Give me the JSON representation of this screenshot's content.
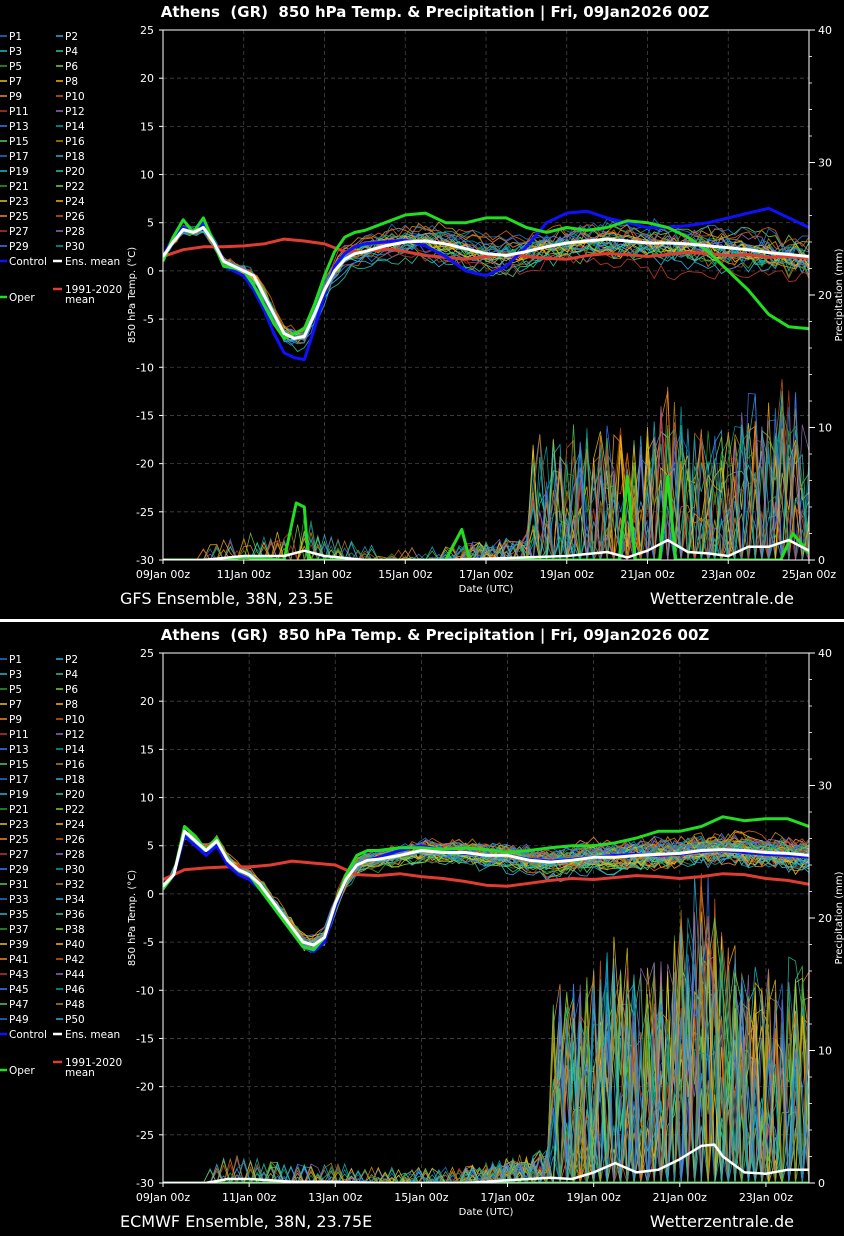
{
  "footer_site": "Wetterzentrale.de",
  "colors": {
    "background": "#000000",
    "frame": "#ffffff",
    "grid": "#444444",
    "mean": "#ffffff",
    "control": "#1010ff",
    "oper": "#22dd22",
    "climatology": "#e03c31",
    "divider": "#ffffff"
  },
  "member_palette": [
    "#1f77d4",
    "#2ab0e0",
    "#17becf",
    "#26c6a0",
    "#2ca02c",
    "#7fd13b",
    "#e8c41a",
    "#ffb000",
    "#f08a24",
    "#d95f0e",
    "#c0392b",
    "#9467bd",
    "#3a78ff",
    "#00a3a3",
    "#55cc55",
    "#b8860b"
  ],
  "chart_data": [
    {
      "type": "line",
      "title": "Athens  (GR)  850 hPa Temp. & Precipitation | Fri, 09Jan2026 00Z",
      "subtitle": "GFS Ensemble, 38N, 23.5E",
      "xlabel": "Date (UTC)",
      "ylabel": "850 hPa Temp. (°C)",
      "y2label": "Precipitation (mm)",
      "ylim": [
        -30,
        25
      ],
      "y2lim": [
        0,
        40
      ],
      "yticks": [
        "25",
        "20",
        "15",
        "10",
        "5",
        "0",
        "-5",
        "-10",
        "-15",
        "-20",
        "-25",
        "-30"
      ],
      "y2ticks": [
        "40",
        "30",
        "20",
        "10",
        "0"
      ],
      "xlim": [
        0,
        16
      ],
      "xticks": [
        {
          "pos": 0,
          "label": "09Jan 00z"
        },
        {
          "pos": 2,
          "label": "11Jan 00z"
        },
        {
          "pos": 4,
          "label": "13Jan 00z"
        },
        {
          "pos": 6,
          "label": "15Jan 00z"
        },
        {
          "pos": 8,
          "label": "17Jan 00z"
        },
        {
          "pos": 10,
          "label": "19Jan 00z"
        },
        {
          "pos": 12,
          "label": "21Jan 00z"
        },
        {
          "pos": 14,
          "label": "23Jan 00z"
        },
        {
          "pos": 16,
          "label": "25Jan 00z"
        }
      ],
      "grid": true,
      "members": [
        "P1",
        "P2",
        "P3",
        "P4",
        "P5",
        "P6",
        "P7",
        "P8",
        "P9",
        "P10",
        "P11",
        "P12",
        "P13",
        "P14",
        "P15",
        "P16",
        "P17",
        "P18",
        "P19",
        "P20",
        "P21",
        "P22",
        "P23",
        "P24",
        "P25",
        "P26",
        "P27",
        "P28",
        "P29",
        "P30"
      ],
      "legend_extra": {
        "control": "Control",
        "mean": "Ens. mean",
        "oper": "Oper",
        "clim": "1991-2020",
        "clim2": "mean"
      },
      "series": [
        {
          "name": "Ens. mean",
          "x": [
            0,
            0.25,
            0.5,
            0.75,
            1,
            1.25,
            1.5,
            1.75,
            2,
            2.25,
            2.5,
            2.75,
            3,
            3.25,
            3.5,
            3.75,
            4,
            4.25,
            4.5,
            4.75,
            5,
            5.5,
            6,
            6.5,
            7,
            7.5,
            8,
            8.5,
            9,
            9.5,
            10,
            10.5,
            11,
            11.5,
            12,
            12.5,
            13,
            13.5,
            14,
            14.5,
            15,
            15.5,
            16
          ],
          "y": [
            1.5,
            3,
            4.3,
            4,
            4.5,
            3,
            1,
            0.5,
            0,
            -0.5,
            -2.5,
            -4.5,
            -6.5,
            -7,
            -6.8,
            -4.5,
            -2,
            0,
            1.2,
            1.8,
            2,
            2.6,
            3,
            3.1,
            2.8,
            2.3,
            1.8,
            1.6,
            2,
            2.5,
            2.9,
            3.1,
            3.3,
            3.1,
            2.9,
            2.9,
            2.8,
            2.6,
            2.4,
            2.2,
            1.9,
            1.7,
            1.5
          ]
        },
        {
          "name": "Control",
          "x": [
            0,
            0.25,
            0.5,
            0.75,
            1,
            1.25,
            1.5,
            1.75,
            2,
            2.25,
            2.5,
            2.75,
            3,
            3.25,
            3.5,
            3.75,
            4,
            4.25,
            4.5,
            4.75,
            5,
            5.5,
            6,
            6.5,
            7,
            7.5,
            8,
            8.5,
            9,
            9.5,
            10,
            10.5,
            11,
            11.5,
            12,
            12.5,
            13,
            13.5,
            14,
            14.5,
            15,
            15.5,
            16
          ],
          "y": [
            1.5,
            3.5,
            4.5,
            4,
            5,
            3,
            0.5,
            0,
            -0.5,
            -2,
            -4,
            -6.5,
            -8.5,
            -9,
            -9.2,
            -6,
            -2.5,
            0.5,
            1.8,
            2.5,
            2.8,
            3,
            3.2,
            2.6,
            1.5,
            0,
            -0.5,
            0.5,
            2.5,
            5,
            6,
            6.2,
            5.5,
            5,
            4.5,
            4.5,
            4.7,
            5,
            5.5,
            6,
            6.5,
            5.5,
            4.5
          ]
        },
        {
          "name": "Oper",
          "x": [
            0,
            0.25,
            0.5,
            0.75,
            1,
            1.25,
            1.5,
            1.75,
            2,
            2.25,
            2.5,
            2.75,
            3,
            3.25,
            3.5,
            3.75,
            4,
            4.25,
            4.5,
            4.75,
            5,
            5.5,
            6,
            6.5,
            7,
            7.5,
            8,
            8.5,
            9,
            9.5,
            10,
            10.5,
            11,
            11.5,
            12,
            12.5,
            13,
            13.5,
            14,
            14.5,
            15,
            15.5,
            16
          ],
          "y": [
            1,
            3.5,
            5.3,
            4,
            5.5,
            3,
            0.5,
            0.3,
            0,
            -1.5,
            -3.5,
            -5.5,
            -7,
            -6.5,
            -6,
            -3.5,
            -0.5,
            2,
            3.5,
            4,
            4.2,
            5,
            5.8,
            6,
            5,
            5,
            5.5,
            5.5,
            4.5,
            4,
            4.5,
            4.2,
            4.5,
            5.2,
            5,
            4.5,
            3.5,
            2,
            0,
            -2,
            -4.5,
            -5.8,
            -6
          ]
        },
        {
          "name": "1991-2020 mean",
          "x": [
            0,
            0.5,
            1,
            1.5,
            2,
            2.5,
            3,
            3.5,
            4,
            4.5,
            5,
            5.5,
            6,
            6.5,
            7,
            7.5,
            8,
            8.5,
            9,
            9.5,
            10,
            10.5,
            11,
            11.5,
            12,
            12.5,
            13,
            13.5,
            14,
            14.5,
            15,
            15.5,
            16
          ],
          "y": [
            1.5,
            2.2,
            2.5,
            2.5,
            2.6,
            2.8,
            3.3,
            3.1,
            2.8,
            2,
            2,
            2.3,
            2,
            1.6,
            1.4,
            1.2,
            1.5,
            1.7,
            1.5,
            1.3,
            1.2,
            1.6,
            1.8,
            1.7,
            1.5,
            1.7,
            1.9,
            1.8,
            1.6,
            1.7,
            1.4,
            1.5,
            1.3
          ]
        }
      ],
      "precip": {
        "mean": {
          "x": [
            0,
            1,
            2,
            3,
            3.5,
            4,
            5,
            6,
            7,
            8,
            9,
            10,
            11,
            11.5,
            12,
            12.5,
            13,
            13.5,
            14,
            14.5,
            15,
            15.5,
            16
          ],
          "y": [
            0,
            0,
            0.3,
            0.3,
            0.7,
            0.3,
            0,
            0,
            0,
            0.1,
            0.2,
            0.3,
            0.6,
            0.2,
            0.7,
            1.5,
            0.6,
            0.5,
            0.3,
            1,
            1,
            1.5,
            0.7
          ]
        },
        "oper": {
          "x": [
            0,
            1,
            2,
            3,
            3.3,
            3.5,
            3.6,
            4,
            5,
            6,
            7,
            7.4,
            7.6,
            8,
            9,
            10,
            11,
            11.3,
            11.5,
            11.7,
            12,
            12.3,
            12.5,
            12.7,
            13,
            14,
            15,
            15.3,
            15.6,
            16
          ],
          "y": [
            0,
            0,
            0.2,
            0,
            4.3,
            4,
            0,
            0,
            0,
            0,
            0,
            2.3,
            0,
            0,
            0,
            0,
            0,
            0,
            6.3,
            0,
            0,
            0,
            6.3,
            0,
            0,
            0,
            0,
            0,
            2,
            0.5
          ]
        }
      }
    },
    {
      "type": "line",
      "title": "Athens  (GR)  850 hPa Temp. & Precipitation | Fri, 09Jan2026 00Z",
      "subtitle": "ECMWF Ensemble, 38N, 23.75E",
      "xlabel": "Date (UTC)",
      "ylabel": "850 hPa Temp. (°C)",
      "y2label": "Precipitation (mm)",
      "ylim": [
        -30,
        25
      ],
      "y2lim": [
        0,
        40
      ],
      "yticks": [
        "25",
        "20",
        "15",
        "10",
        "5",
        "0",
        "-5",
        "-10",
        "-15",
        "-20",
        "-25",
        "-30"
      ],
      "y2ticks": [
        "40",
        "30",
        "20",
        "10",
        "0"
      ],
      "xlim": [
        0,
        15
      ],
      "xticks": [
        {
          "pos": 0,
          "label": "09Jan 00z"
        },
        {
          "pos": 2,
          "label": "11Jan 00z"
        },
        {
          "pos": 4,
          "label": "13Jan 00z"
        },
        {
          "pos": 6,
          "label": "15Jan 00z"
        },
        {
          "pos": 8,
          "label": "17Jan 00z"
        },
        {
          "pos": 10,
          "label": "19Jan 00z"
        },
        {
          "pos": 12,
          "label": "21Jan 00z"
        },
        {
          "pos": 14,
          "label": "23Jan 00z"
        }
      ],
      "grid": true,
      "members": [
        "P1",
        "P2",
        "P3",
        "P4",
        "P5",
        "P6",
        "P7",
        "P8",
        "P9",
        "P10",
        "P11",
        "P12",
        "P13",
        "P14",
        "P15",
        "P16",
        "P17",
        "P18",
        "P19",
        "P20",
        "P21",
        "P22",
        "P23",
        "P24",
        "P25",
        "P26",
        "P27",
        "P28",
        "P29",
        "P30",
        "P31",
        "P32",
        "P33",
        "P34",
        "P35",
        "P36",
        "P37",
        "P38",
        "P39",
        "P40",
        "P41",
        "P42",
        "P43",
        "P44",
        "P45",
        "P46",
        "P47",
        "P48",
        "P49",
        "P50"
      ],
      "legend_extra": {
        "control": "Control",
        "mean": "Ens. mean",
        "oper": "Oper",
        "clim": "1991-2020",
        "clim2": "mean"
      },
      "series": [
        {
          "name": "Ens. mean",
          "x": [
            0,
            0.25,
            0.5,
            0.75,
            1,
            1.25,
            1.5,
            1.75,
            2,
            2.25,
            2.5,
            2.75,
            3,
            3.25,
            3.5,
            3.75,
            4,
            4.25,
            4.5,
            4.75,
            5,
            5.5,
            6,
            6.5,
            7,
            7.5,
            8,
            8.5,
            9,
            9.5,
            10,
            10.5,
            11,
            11.5,
            12,
            12.5,
            13,
            13.5,
            14,
            14.5,
            15
          ],
          "y": [
            0.8,
            2,
            6.5,
            5.5,
            4.5,
            5.5,
            3.5,
            2.5,
            2,
            1,
            -0.5,
            -2,
            -3.5,
            -5,
            -5.3,
            -4.5,
            -1,
            1.5,
            3,
            3.5,
            3.6,
            4,
            4.5,
            4.3,
            4.3,
            4,
            4,
            3.5,
            3.3,
            3.5,
            3.8,
            3.8,
            4,
            4.1,
            4.2,
            4.5,
            4.6,
            4.5,
            4.3,
            4.2,
            4
          ]
        },
        {
          "name": "Control",
          "x": [
            0,
            0.25,
            0.5,
            0.75,
            1,
            1.25,
            1.5,
            1.75,
            2,
            2.25,
            2.5,
            2.75,
            3,
            3.25,
            3.5,
            3.75,
            4,
            4.25,
            4.5,
            4.75,
            5,
            5.5,
            6,
            6.5,
            7,
            7.5,
            8,
            8.5,
            9,
            9.5,
            10,
            10.5,
            11,
            11.5,
            12,
            12.5,
            13,
            13.5,
            14,
            14.5,
            15
          ],
          "y": [
            0.5,
            2,
            6,
            5,
            4,
            5,
            3,
            2,
            1.5,
            0.5,
            -1,
            -2.5,
            -4,
            -5.5,
            -6,
            -5,
            -1.5,
            1.5,
            3,
            3.5,
            3.8,
            4.5,
            5,
            4.5,
            4.2,
            4,
            4,
            3.6,
            3.4,
            3.6,
            3.8,
            4,
            4.1,
            4,
            4.1,
            4.4,
            4.5,
            4.3,
            4.1,
            4,
            3.8
          ]
        },
        {
          "name": "Oper",
          "x": [
            0,
            0.25,
            0.5,
            0.75,
            1,
            1.25,
            1.5,
            1.75,
            2,
            2.25,
            2.5,
            2.75,
            3,
            3.25,
            3.5,
            3.75,
            4,
            4.25,
            4.5,
            4.75,
            5,
            5.5,
            6,
            6.5,
            7,
            7.5,
            8,
            8.5,
            9,
            9.5,
            10,
            10.5,
            11,
            11.5,
            12,
            12.5,
            13,
            13.5,
            14,
            14.5,
            15
          ],
          "y": [
            0.5,
            2,
            7,
            6,
            4.5,
            5.8,
            3.5,
            2.5,
            2,
            0.5,
            -1,
            -2.5,
            -4,
            -5.5,
            -5.8,
            -4.5,
            -1,
            2,
            4,
            4.5,
            4.5,
            4.8,
            4.8,
            4.6,
            4.8,
            4.6,
            4.3,
            4.5,
            4.8,
            5,
            5,
            5.3,
            5.8,
            6.5,
            6.5,
            7,
            8,
            7.6,
            7.8,
            7.8,
            7
          ]
        },
        {
          "name": "1991-2020 mean",
          "x": [
            0,
            0.5,
            1,
            1.5,
            2,
            2.5,
            3,
            3.5,
            4,
            4.5,
            5,
            5.5,
            6,
            6.5,
            7,
            7.5,
            8,
            8.5,
            9,
            9.5,
            10,
            10.5,
            11,
            11.5,
            12,
            12.5,
            13,
            13.5,
            14,
            14.5,
            15
          ],
          "y": [
            1.5,
            2.5,
            2.7,
            2.8,
            2.8,
            3,
            3.4,
            3.2,
            3,
            2,
            1.9,
            2.1,
            1.8,
            1.6,
            1.3,
            0.9,
            0.8,
            1.1,
            1.4,
            1.6,
            1.5,
            1.7,
            1.9,
            1.8,
            1.6,
            1.8,
            2.1,
            2,
            1.6,
            1.4,
            1
          ]
        }
      ],
      "precip": {
        "mean": {
          "x": [
            0,
            1,
            1.5,
            2,
            3,
            4,
            5,
            6,
            7,
            7.5,
            8,
            8.5,
            9,
            9.5,
            10,
            10.5,
            11,
            11.5,
            12,
            12.5,
            12.8,
            13,
            13.5,
            14,
            14.5,
            15
          ],
          "y": [
            0,
            0,
            0.3,
            0.3,
            0.1,
            0.1,
            0,
            0,
            0,
            0.1,
            0.2,
            0.3,
            0.4,
            0.3,
            0.8,
            1.5,
            0.8,
            1,
            1.8,
            2.8,
            2.9,
            2,
            0.8,
            0.7,
            1,
            1
          ]
        },
        "oper": {
          "x": [
            0,
            5,
            10,
            15
          ],
          "y": [
            0,
            0,
            0,
            0
          ]
        }
      }
    }
  ]
}
